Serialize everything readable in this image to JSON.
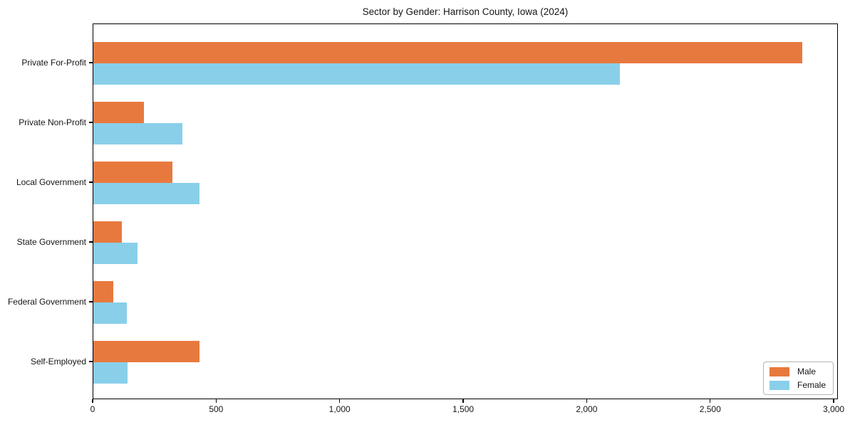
{
  "chart_data": {
    "type": "bar",
    "orientation": "horizontal",
    "title": "Sector by Gender: Harrison County, Iowa (2024)",
    "categories": [
      "Private For-Profit",
      "Private Non-Profit",
      "Local Government",
      "State Government",
      "Federal Government",
      "Self-Employed"
    ],
    "series": [
      {
        "name": "Male",
        "color": "#e8793e",
        "values": [
          2875,
          205,
          320,
          115,
          80,
          430
        ]
      },
      {
        "name": "Female",
        "color": "#89cfea",
        "values": [
          2135,
          360,
          430,
          180,
          135,
          140
        ]
      }
    ],
    "xlabel": "",
    "ylabel": "",
    "xlim": [
      0,
      3017
    ],
    "xticks": [
      0,
      500,
      1000,
      1500,
      2000,
      2500,
      3000
    ],
    "xtick_labels": [
      "0",
      "500",
      "1,000",
      "1,500",
      "2,000",
      "2,500",
      "3,000"
    ],
    "grid": false,
    "legend": {
      "position": "lower right",
      "entries": [
        "Male",
        "Female"
      ]
    },
    "colors": {
      "background": "#ffffff",
      "axis": "#000000",
      "text": "#151515"
    }
  }
}
